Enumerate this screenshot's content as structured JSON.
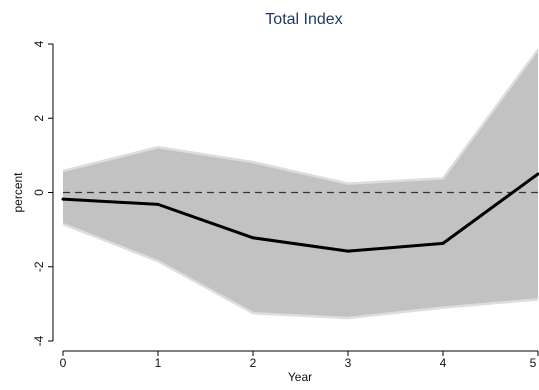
{
  "chart_data": {
    "type": "line",
    "title": "Total Index",
    "xlabel": "Year",
    "ylabel": "percent",
    "x": [
      0,
      1,
      2,
      3,
      4,
      5
    ],
    "xlim": [
      0,
      5
    ],
    "ylim": [
      -4,
      4
    ],
    "xticks": [
      0,
      1,
      2,
      3,
      4,
      5
    ],
    "yticks": [
      -4,
      -2,
      0,
      2,
      4
    ],
    "grid": false,
    "legend": "none",
    "reference_line": {
      "y": 0,
      "style": "dashed",
      "color": "#333333"
    },
    "series": [
      {
        "values": [
          -0.18,
          -0.32,
          -1.22,
          -1.58,
          -1.37,
          0.5
        ],
        "color": "#000000"
      }
    ],
    "confidence_band": {
      "lower": [
        -0.85,
        -1.85,
        -3.25,
        -3.38,
        -3.1,
        -2.88
      ],
      "upper": [
        0.58,
        1.22,
        0.82,
        0.24,
        0.38,
        3.85
      ],
      "fill": "#c2c2c2",
      "edge": "#dddddd"
    }
  }
}
